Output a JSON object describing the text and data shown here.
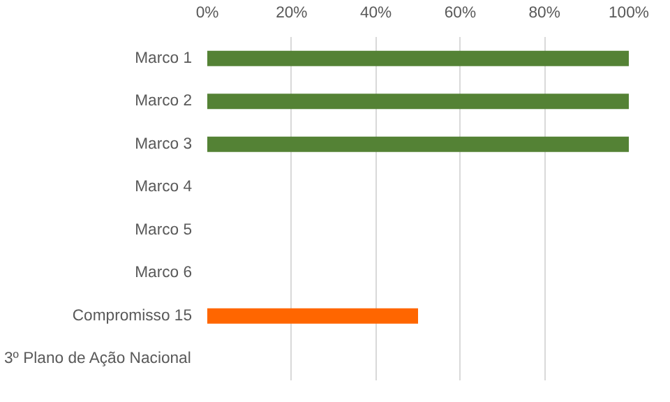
{
  "chart_data": {
    "type": "bar",
    "orientation": "horizontal",
    "categories": [
      "Marco 1",
      "Marco 2",
      "Marco 3",
      "Marco 4",
      "Marco 5",
      "Marco 6",
      "Compromisso 15",
      "3º Plano de Ação Nacional"
    ],
    "values": [
      100,
      100,
      100,
      0,
      0,
      0,
      50,
      0
    ],
    "colors": [
      "#548235",
      "#548235",
      "#548235",
      "#548235",
      "#548235",
      "#548235",
      "#ff6600",
      "#548235"
    ],
    "xlim": [
      0,
      100
    ],
    "xticks": [
      {
        "value": 0,
        "label": "0%"
      },
      {
        "value": 20,
        "label": "20%"
      },
      {
        "value": 40,
        "label": "40%"
      },
      {
        "value": 60,
        "label": "60%"
      },
      {
        "value": 80,
        "label": "80%"
      },
      {
        "value": 100,
        "label": "100%"
      }
    ],
    "grid": "x"
  }
}
